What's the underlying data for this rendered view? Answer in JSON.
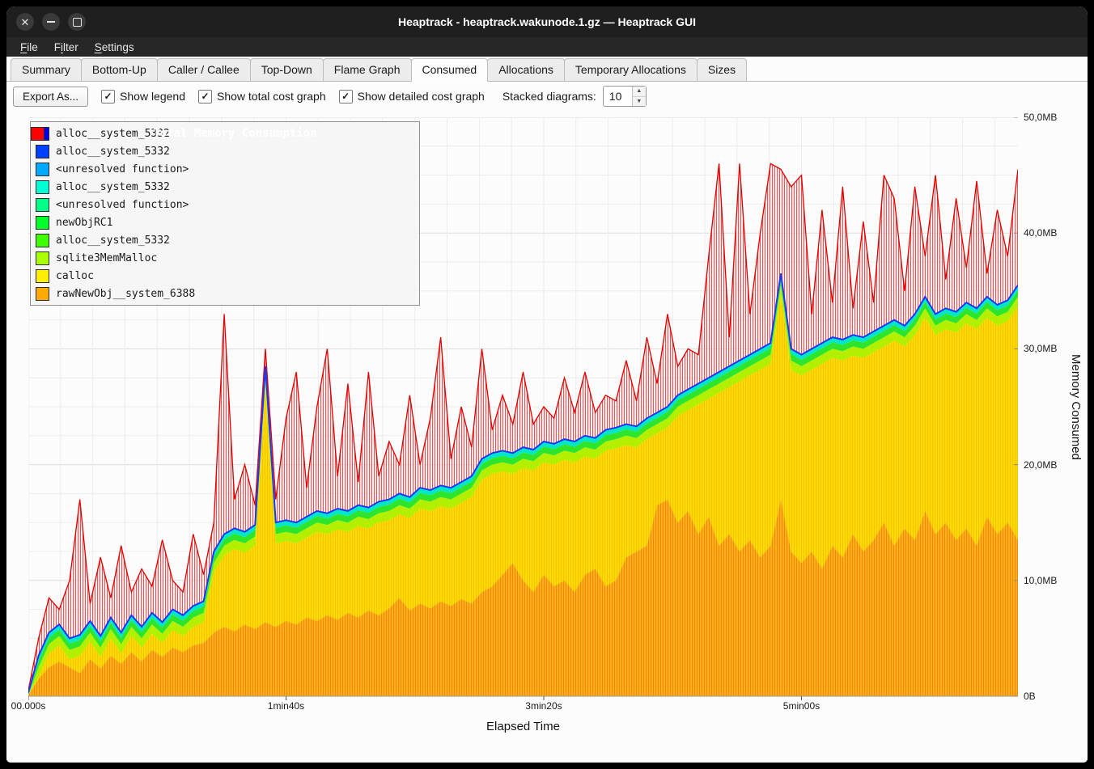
{
  "window": {
    "title": "Heaptrack - heaptrack.wakunode.1.gz — Heaptrack GUI",
    "buttons": [
      "close",
      "minimize",
      "maximize"
    ]
  },
  "menu": {
    "items": [
      {
        "label": "File",
        "underline": 0
      },
      {
        "label": "Filter",
        "underline": 1
      },
      {
        "label": "Settings",
        "underline": 0
      }
    ]
  },
  "tabs": {
    "items": [
      "Summary",
      "Bottom-Up",
      "Caller / Callee",
      "Top-Down",
      "Flame Graph",
      "Consumed",
      "Allocations",
      "Temporary Allocations",
      "Sizes"
    ],
    "active": "Consumed"
  },
  "toolbar": {
    "export_label": "Export As...",
    "checkboxes": [
      {
        "label": "Show legend",
        "checked": true
      },
      {
        "label": "Show total cost graph",
        "checked": true
      },
      {
        "label": "Show detailed cost graph",
        "checked": true
      }
    ],
    "stacked_label": "Stacked diagrams:",
    "stacked_value": "10"
  },
  "chart_data": {
    "type": "area",
    "stacked": true,
    "title": "Total Memory Consumption",
    "xlabel": "Elapsed Time",
    "ylabel": "Memory Consumed",
    "x_ticks": [
      "00.000s",
      "1min40s",
      "3min20s",
      "5min00s"
    ],
    "x_tick_seconds": [
      0,
      100,
      200,
      300
    ],
    "y_ticks": [
      "0B",
      "10,0MB",
      "20,0MB",
      "30,0MB",
      "40,0MB",
      "50,0MB"
    ],
    "y_tick_mb": [
      0,
      10,
      20,
      30,
      40,
      50
    ],
    "ylim": [
      0,
      50
    ],
    "x_total_seconds": 384,
    "x_step_seconds": 4,
    "legend": [
      {
        "label": "Total Memory Consumption",
        "color": "#ff0000"
      },
      {
        "label": "alloc__system_5332",
        "color": "#0000ee"
      },
      {
        "label": "alloc__system_5332",
        "color": "#0040ff"
      },
      {
        "label": "<unresolved function>",
        "color": "#00aaff"
      },
      {
        "label": "alloc__system_5332",
        "color": "#00ffd5"
      },
      {
        "label": "<unresolved function>",
        "color": "#00ff88"
      },
      {
        "label": "newObjRC1",
        "color": "#00ff2b"
      },
      {
        "label": "alloc__system_5332",
        "color": "#40ff00"
      },
      {
        "label": "sqlite3MemMalloc",
        "color": "#aaff00"
      },
      {
        "label": "calloc",
        "color": "#ffee00"
      },
      {
        "label": "rawNewObj__system_6388",
        "color": "#ffaa00"
      }
    ],
    "series_mb": {
      "orange_top": [
        0.1,
        1.5,
        2.5,
        3,
        2.5,
        2,
        3.2,
        2.4,
        3.5,
        2.8,
        3.8,
        3,
        4,
        3.4,
        4.2,
        3.8,
        4.4,
        4.6,
        5.5,
        6,
        5.6,
        6.2,
        5.8,
        6.4,
        6,
        6.5,
        6.2,
        6.8,
        6.5,
        7,
        6.6,
        7.2,
        6.8,
        7.4,
        7,
        7.6,
        8.5,
        7.4,
        8,
        7.6,
        8.2,
        7.8,
        8.4,
        8,
        9,
        9.5,
        10.5,
        11.5,
        10,
        9,
        10.5,
        9.5,
        10,
        9,
        10.5,
        11,
        9.5,
        10,
        12,
        12.5,
        13,
        16.5,
        17,
        15,
        16,
        14,
        15.5,
        13,
        14,
        12.5,
        13.5,
        12,
        13,
        17,
        12.5,
        11.5,
        12.5,
        11,
        13,
        12,
        14,
        12.5,
        13.5,
        15,
        13,
        14.5,
        13.5,
        16,
        14,
        15,
        13.5,
        14.5,
        13,
        15.5,
        14,
        15,
        13.5
      ],
      "blue_top": [
        0.3,
        3.5,
        5.5,
        6.2,
        5,
        5.3,
        6.5,
        5.2,
        6.8,
        5.5,
        7,
        6,
        7.2,
        6.4,
        7.5,
        7,
        7.8,
        8.2,
        12.5,
        14,
        14.5,
        14.2,
        14.8,
        28.5,
        15,
        15.2,
        15,
        15.5,
        16,
        15.8,
        16.2,
        16,
        16.5,
        16.3,
        16.8,
        17,
        17.5,
        17.2,
        18,
        17.8,
        18.2,
        18,
        18.5,
        19,
        20.5,
        21,
        21.2,
        21,
        21.5,
        21.3,
        22,
        21.8,
        22.2,
        22,
        22.5,
        22.3,
        23,
        23.2,
        23.5,
        23.3,
        24,
        24.5,
        25,
        26,
        26.5,
        27,
        27.5,
        28,
        28.5,
        29,
        29.5,
        30,
        30.5,
        36.5,
        30,
        29.5,
        30,
        30.5,
        31,
        30.8,
        31.2,
        31,
        31.5,
        32,
        32.5,
        32,
        33,
        34.5,
        33,
        33.5,
        33.2,
        34,
        33.5,
        34.5,
        33.8,
        34.2,
        35.5
      ],
      "total": [
        0.5,
        5,
        8.5,
        7.5,
        10,
        17,
        8,
        12,
        8.5,
        13,
        9,
        11,
        9.5,
        13.5,
        10,
        9,
        14,
        10.5,
        15,
        33,
        17,
        20,
        16.5,
        30,
        17,
        24,
        28,
        18,
        25,
        30,
        19,
        27,
        18.5,
        28,
        19,
        22,
        20,
        26,
        20,
        24,
        31,
        20.5,
        25,
        21.5,
        30,
        23,
        26,
        23.5,
        28,
        23.5,
        25,
        24,
        27.5,
        24.5,
        28,
        24.5,
        26,
        25.5,
        29,
        25.5,
        31,
        27,
        33,
        28.5,
        30,
        29.5,
        38,
        46,
        31,
        46,
        33,
        40,
        46,
        45.5,
        44,
        45,
        33,
        42,
        34,
        44,
        33.5,
        41,
        34,
        45,
        43,
        35,
        44,
        38,
        45,
        36,
        43,
        37,
        44.5,
        36.5,
        42,
        38,
        45.5
      ]
    },
    "band_offsets_below_blue": {
      "yellow_top": 1.8,
      "lightgreen_top": 1.0,
      "green_top": 0.45
    },
    "fills": {
      "orange": "#ffaf1e",
      "orange_stripe": "#ef8a00",
      "yellow": "#ffd900",
      "yellow_stripe": "#e3b400",
      "lightgreen": "#b2ef00",
      "green": "#2ee52e",
      "cyan": "#00e6c8",
      "red_fill": "#ffdcdc",
      "red_stripe": "#e82020",
      "red_line": "#e00000",
      "blue_line": "#1c35ff",
      "grid_major": "#dcdcdc",
      "grid_minor": "#ececec"
    }
  }
}
